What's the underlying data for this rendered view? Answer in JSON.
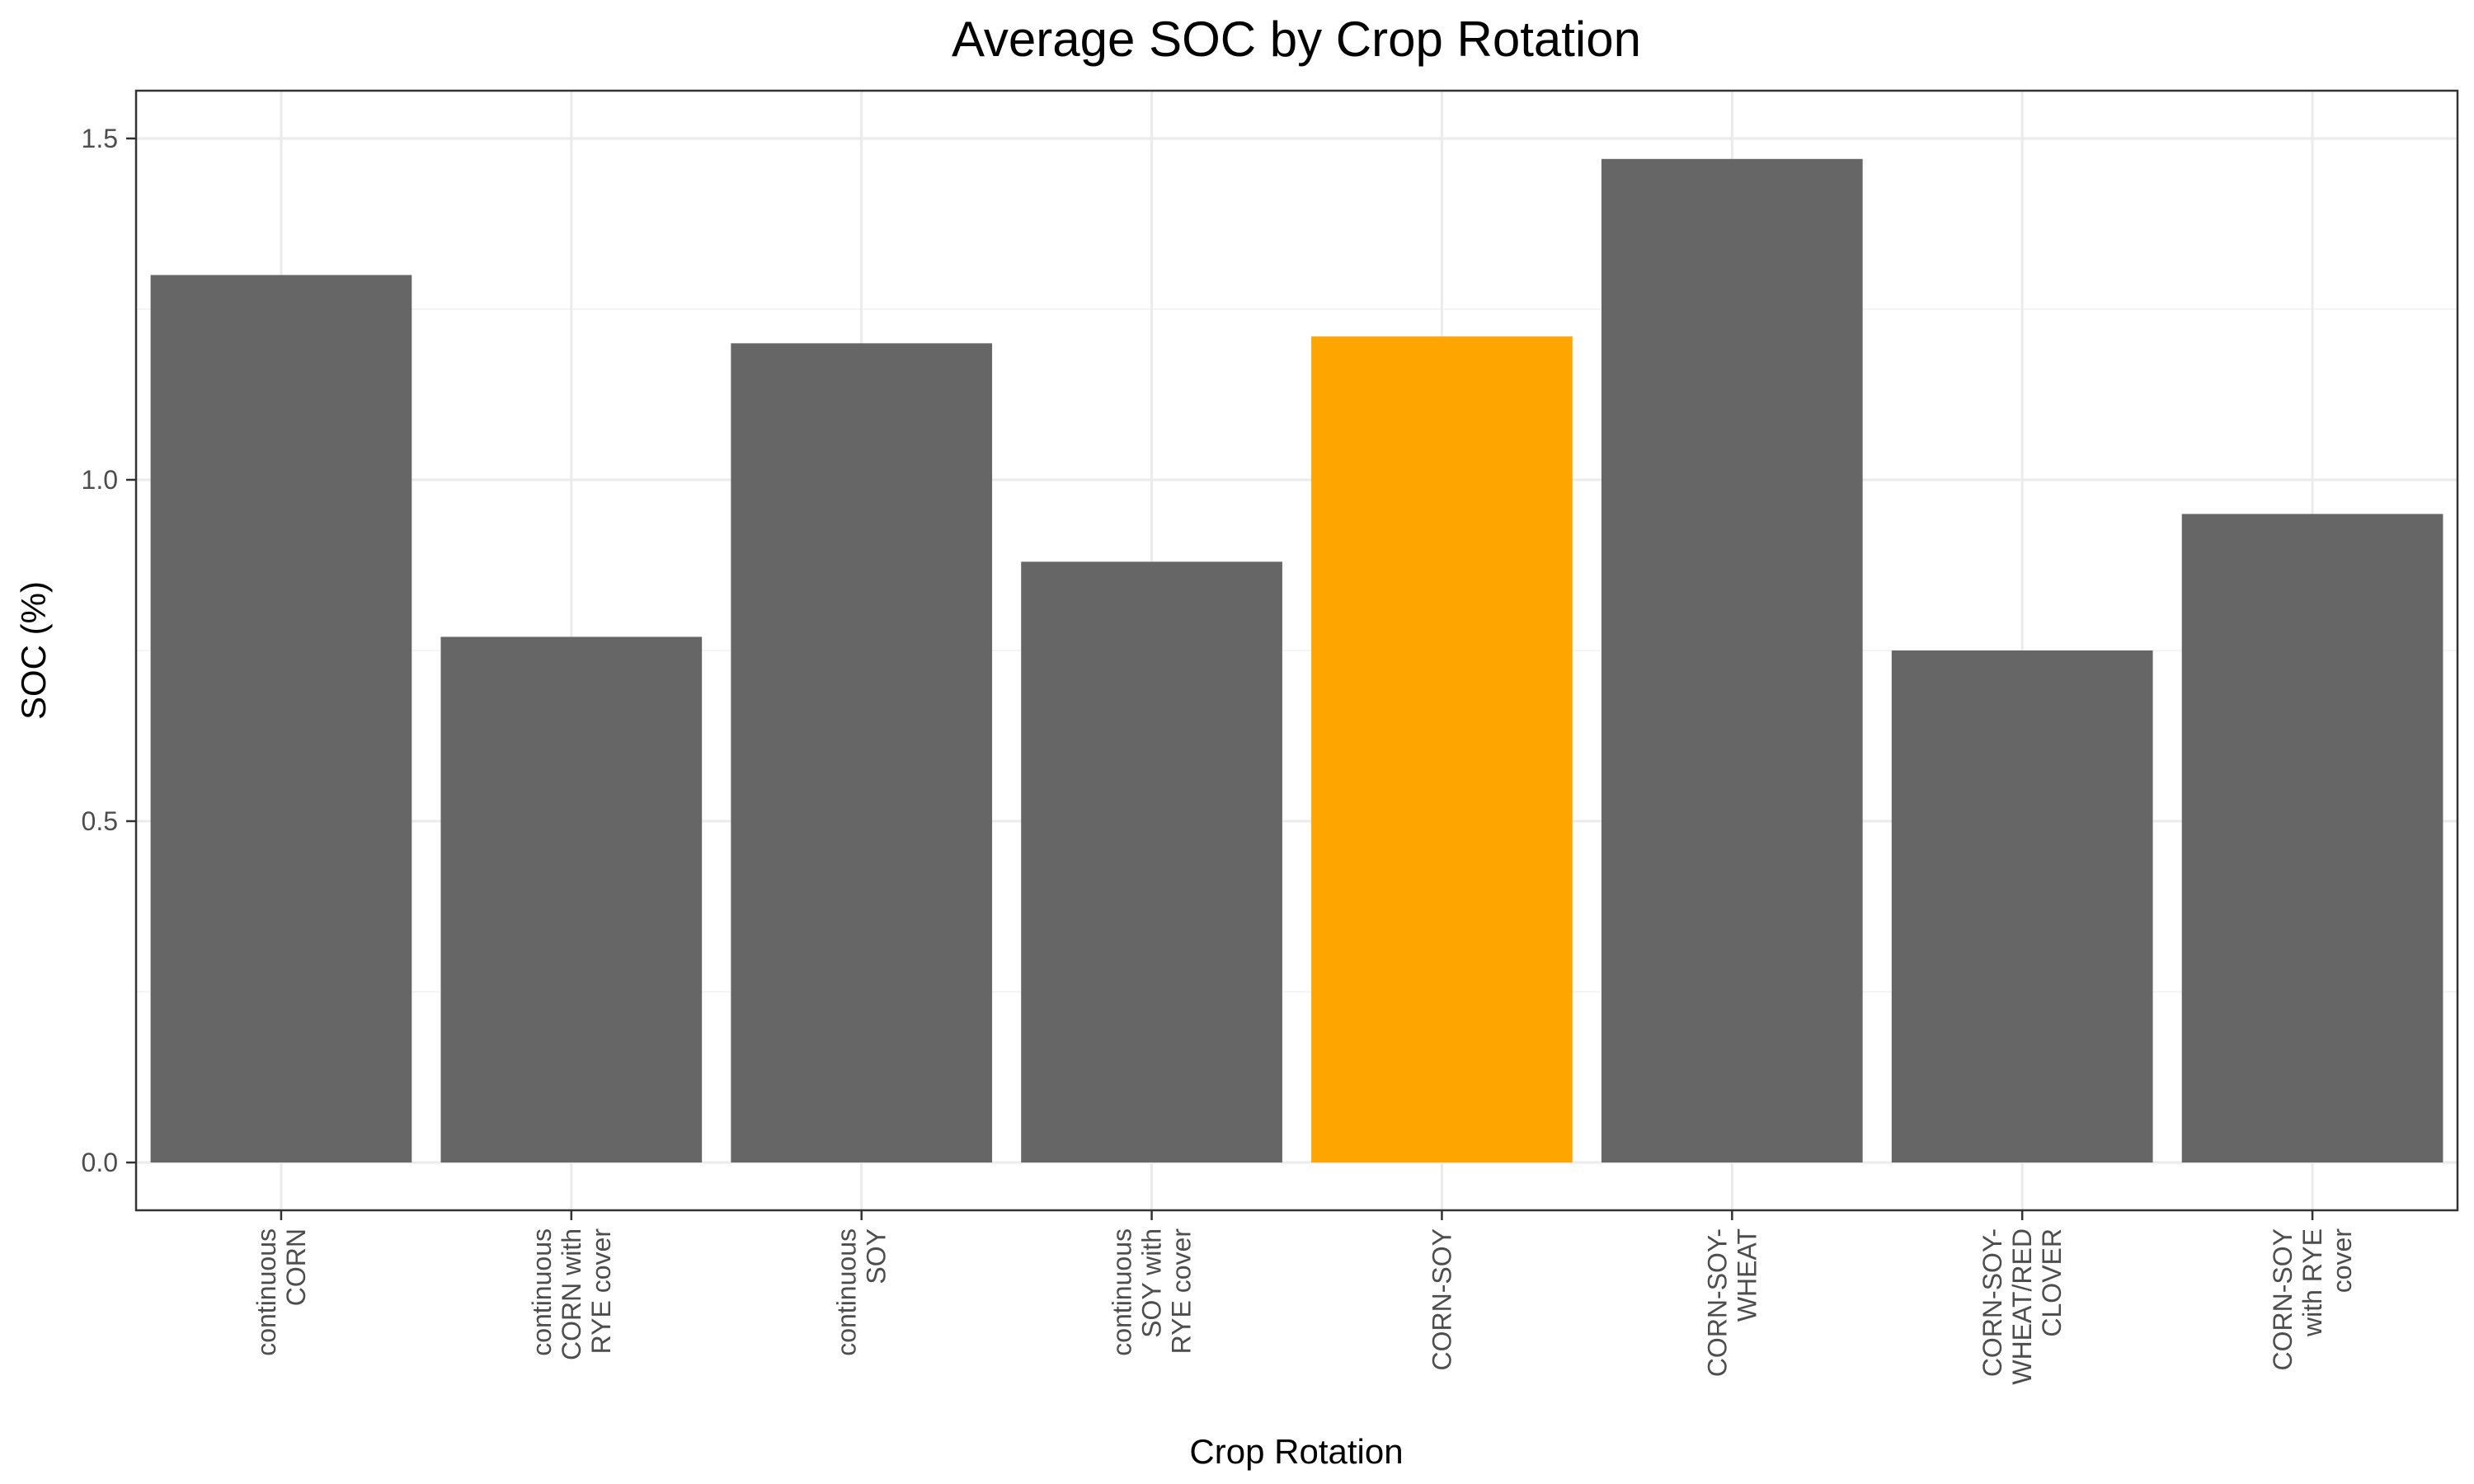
{
  "chart_data": {
    "type": "bar",
    "title": "Average SOC by Crop Rotation",
    "xlabel": "Crop Rotation",
    "ylabel": "SOC (%)",
    "ylim": [
      -0.07,
      1.57
    ],
    "yticks": [
      "0.0",
      "0.5",
      "1.0",
      "1.5"
    ],
    "categories": [
      "continuous CORN",
      "continuous CORN with RYE cover",
      "continuous SOY",
      "continuous SOY with RYE cover",
      "CORN-SOY",
      "CORN-SOY-WHEAT",
      "CORN-SOY-WHEAT/RED CLOVER",
      "CORN-SOY with RYE cover"
    ],
    "category_label_lines": [
      [
        "continuous",
        "CORN"
      ],
      [
        "continuous",
        "CORN with",
        "RYE cover"
      ],
      [
        "continuous",
        "SOY"
      ],
      [
        "continuous",
        "SOY with",
        "RYE cover"
      ],
      [
        "CORN-SOY"
      ],
      [
        "CORN-SOY-",
        "WHEAT"
      ],
      [
        "CORN-SOY-",
        "WHEAT/RED",
        "CLOVER"
      ],
      [
        "CORN-SOY",
        "with RYE",
        "cover"
      ]
    ],
    "values": [
      1.3,
      0.77,
      1.2,
      0.88,
      1.21,
      1.47,
      0.75,
      0.95
    ],
    "highlight_category": "CORN-SOY",
    "colors": {
      "bar": "#666666",
      "highlight": "#FFA500",
      "grid_major": "#EBEBEB",
      "grid_minor": "#F2F2F2",
      "panel_border": "#333333",
      "tick": "#333333"
    },
    "grid": true,
    "legend": "none"
  }
}
